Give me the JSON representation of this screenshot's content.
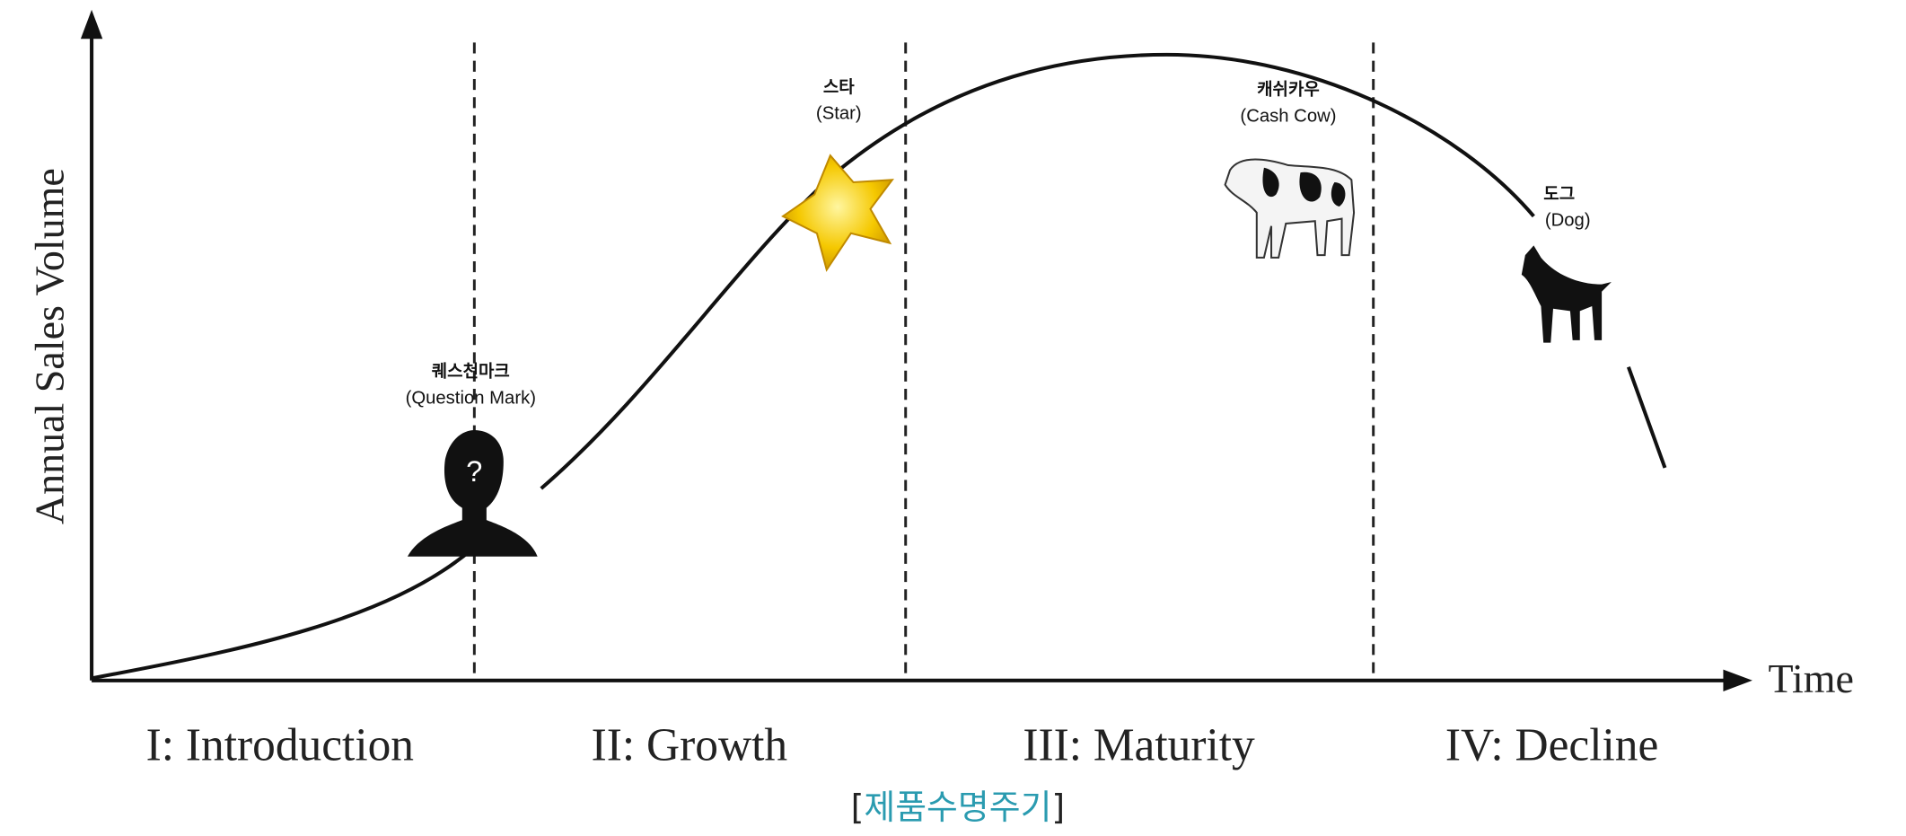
{
  "axes": {
    "y_label": "Annual Sales Volume",
    "x_label": "Time"
  },
  "stages": [
    {
      "label": "I: Introduction"
    },
    {
      "label": "II:  Growth"
    },
    {
      "label": "III:  Maturity"
    },
    {
      "label": "IV:  Decline"
    }
  ],
  "markers": [
    {
      "label_ko": "퀘스천마크",
      "label_en": "(Question Mark)"
    },
    {
      "label_ko": "스타",
      "label_en": "(Star)"
    },
    {
      "label_ko": "캐쉬카우",
      "label_en": "(Cash Cow)"
    },
    {
      "label_ko": "도그",
      "label_en": "(Dog)"
    }
  ],
  "caption": {
    "open": "[",
    "text": "제품수명주기",
    "close": "]"
  }
}
